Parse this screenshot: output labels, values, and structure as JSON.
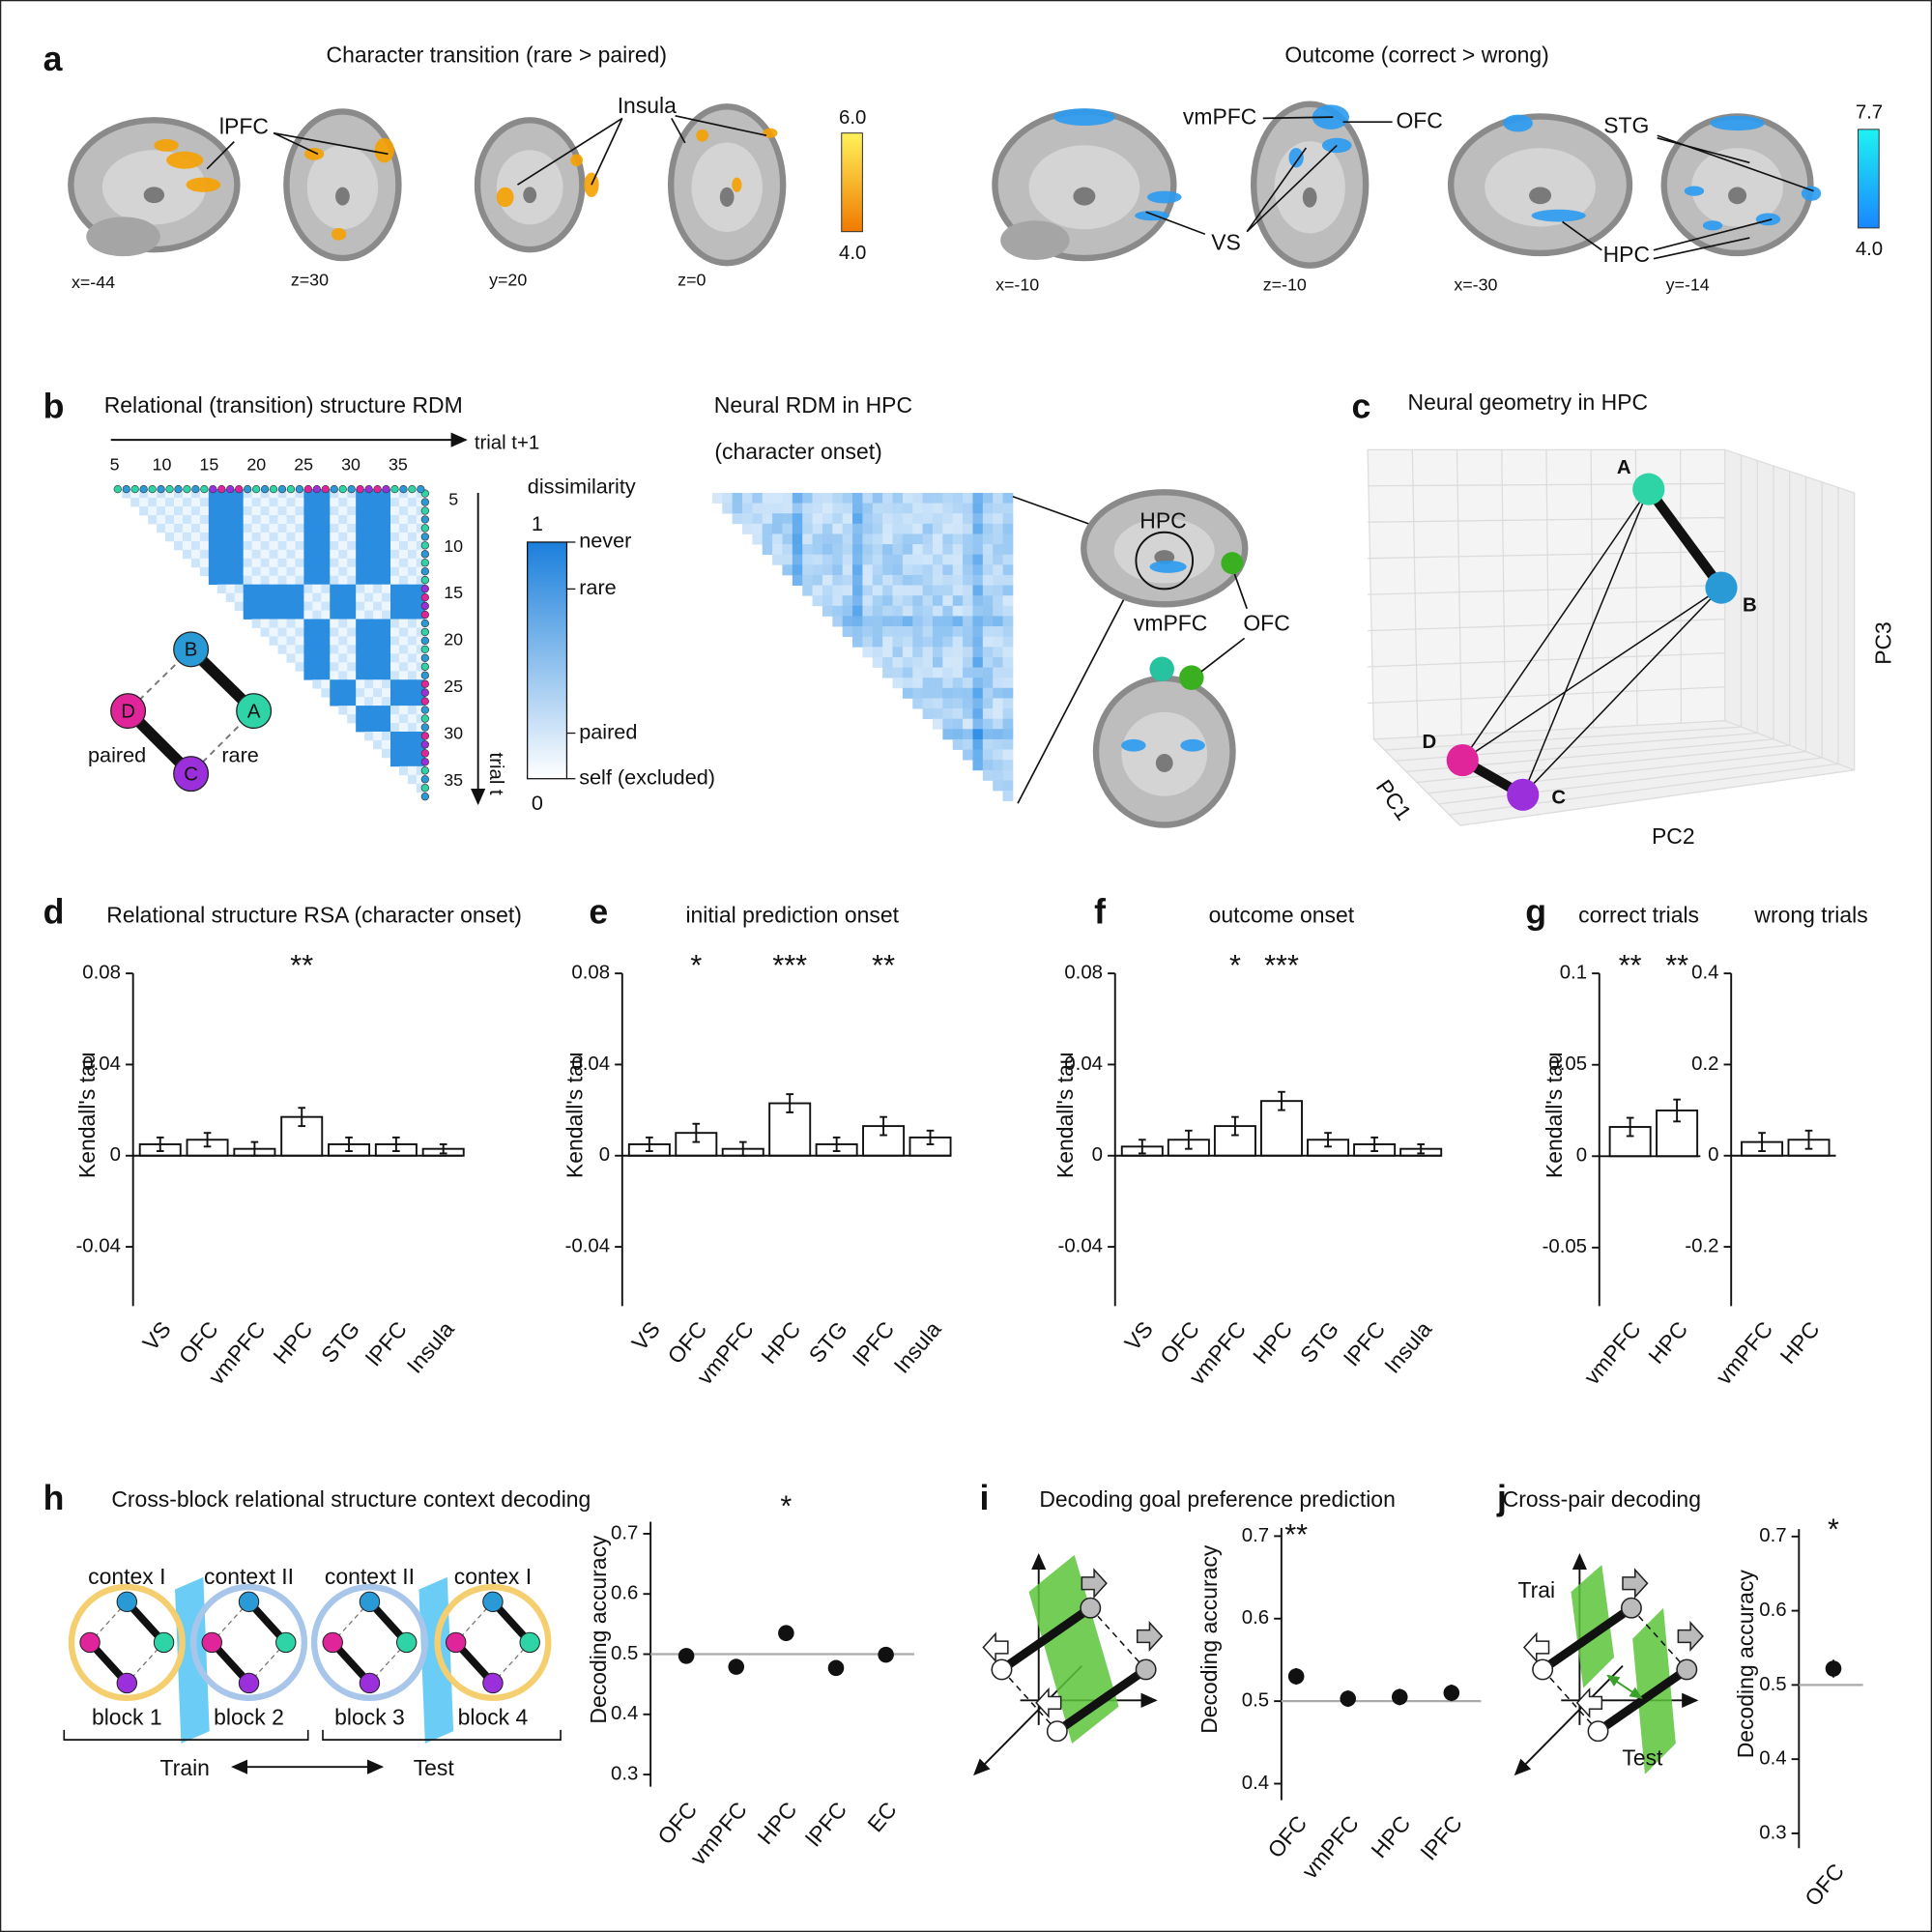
{
  "panel_labels": [
    "a",
    "b",
    "c",
    "d",
    "e",
    "f",
    "g",
    "h",
    "i",
    "j"
  ],
  "panel_a": {
    "titles": [
      "Character transition (rare > paired)",
      "Outcome (correct > wrong)"
    ],
    "slices": [
      "x=-44",
      "z=30",
      "y=20",
      "z=0",
      "x=-10",
      "z=-10",
      "x=-30",
      "y=-14"
    ],
    "regions": [
      "lPFC",
      "Insula",
      "vmPFC",
      "OFC",
      "VS",
      "STG",
      "HPC"
    ],
    "colorbars": [
      {
        "min": {
          "value": 4,
          "label": "4.0"
        },
        "max": {
          "value": 6,
          "label": "6.0"
        }
      },
      {
        "min": {
          "value": 4,
          "label": "4.0"
        },
        "max": 7.7
      }
    ]
  },
  "panel_b": {
    "title": "Relational (transition) structure RDM",
    "axis_top": "trial t+1",
    "axis_right": "trial t",
    "ticks": [
      5,
      10,
      15,
      20,
      25,
      30,
      35
    ],
    "colorbar_title": "dissimilarity",
    "colorbar_ticks": [
      0,
      1
    ],
    "levels": [
      "never",
      "rare",
      "paired",
      "self (excluded)"
    ],
    "nodes": [
      "A",
      "B",
      "C",
      "D"
    ],
    "edge_labels": [
      "paired",
      "rare"
    ],
    "neural_title": "Neural RDM in HPC",
    "neural_subtitle": "(character onset)",
    "brain_labels": [
      "HPC",
      "vmPFC",
      "OFC"
    ]
  },
  "panel_c": {
    "title": "Neural geometry in HPC",
    "nodes": [
      "A",
      "B",
      "C",
      "D"
    ],
    "axes": [
      "PC1",
      "PC2",
      "PC3"
    ]
  },
  "panel_h": {
    "contexts": [
      "contex I",
      "context II",
      "context II",
      "contex I"
    ],
    "blocks": [
      "block 1",
      "block 2",
      "block 3",
      "block 4"
    ],
    "train": "Train",
    "test": "Test"
  },
  "panel_j": {
    "train": "Trai",
    "test": "Test"
  },
  "chart_data": [
    {
      "type": "bar",
      "title": "Relational structure RSA (character onset)",
      "ylabel": "Kendall's tau",
      "categories": [
        "VS",
        "OFC",
        "vmPFC",
        "HPC",
        "STG",
        "lPFC",
        "Insula"
      ],
      "values": [
        0.005,
        0.007,
        0.003,
        0.017,
        0.005,
        0.005,
        0.003
      ],
      "errors": [
        0.003,
        0.003,
        0.003,
        0.004,
        0.003,
        0.003,
        0.002
      ],
      "significance": [
        null,
        null,
        null,
        "**",
        null,
        null,
        null
      ],
      "ylim": [
        -0.066,
        0.08
      ],
      "yticks": [
        -0.04,
        0,
        0.04,
        0.08
      ]
    },
    {
      "type": "bar",
      "title": "initial prediction onset",
      "ylabel": "Kendall's tau",
      "categories": [
        "VS",
        "OFC",
        "vmPFC",
        "HPC",
        "STG",
        "lPFC",
        "Insula"
      ],
      "values": [
        0.005,
        0.01,
        0.003,
        0.023,
        0.005,
        0.013,
        0.008
      ],
      "errors": [
        0.003,
        0.004,
        0.003,
        0.004,
        0.003,
        0.004,
        0.003
      ],
      "significance": [
        null,
        "*",
        null,
        "***",
        null,
        "**",
        null
      ],
      "ylim": [
        -0.066,
        0.08
      ],
      "yticks": [
        -0.04,
        0,
        0.04,
        0.08
      ]
    },
    {
      "type": "bar",
      "title": "outcome onset",
      "ylabel": "Kendall's tau",
      "categories": [
        "VS",
        "OFC",
        "vmPFC",
        "HPC",
        "STG",
        "lPFC",
        "Insula"
      ],
      "values": [
        0.004,
        0.007,
        0.013,
        0.024,
        0.007,
        0.005,
        0.003
      ],
      "errors": [
        0.003,
        0.004,
        0.004,
        0.004,
        0.003,
        0.003,
        0.002
      ],
      "significance": [
        null,
        null,
        "*",
        "***",
        null,
        null,
        null
      ],
      "ylim": [
        -0.066,
        0.08
      ],
      "yticks": [
        -0.04,
        0,
        0.04,
        0.08
      ]
    },
    {
      "type": "bar",
      "title": "correct trials",
      "ylabel": "Kendall's tau",
      "categories": [
        "vmPFC",
        "HPC"
      ],
      "values": [
        0.016,
        0.025
      ],
      "errors": [
        0.005,
        0.006
      ],
      "significance": [
        "**",
        "**"
      ],
      "ylim": [
        -0.082,
        0.1
      ],
      "yticks": [
        -0.05,
        0,
        0.05,
        0.1
      ]
    },
    {
      "type": "bar",
      "title": "wrong trials",
      "categories": [
        "vmPFC",
        "HPC"
      ],
      "values": [
        0.03,
        0.035
      ],
      "errors": [
        0.02,
        0.02
      ],
      "ylim": [
        -0.33,
        0.4
      ],
      "yticks": [
        -0.2,
        0,
        0.2,
        0.4
      ]
    },
    {
      "type": "point",
      "title": "Cross-block relational structure context decoding",
      "ylabel": "Decoding accuracy",
      "categories": [
        "OFC",
        "vmPFC",
        "HPC",
        "lPFC",
        "EC"
      ],
      "values": [
        0.497,
        0.479,
        0.535,
        0.477,
        0.499
      ],
      "errors": [
        0.012,
        0.012,
        0.011,
        0.011,
        0.012
      ],
      "significance": [
        null,
        null,
        "*",
        null,
        null
      ],
      "reference_line": 0.5,
      "ylim": [
        0.28,
        0.72
      ],
      "yticks": [
        0.3,
        0.4,
        0.5,
        0.6,
        0.7
      ]
    },
    {
      "type": "point",
      "title": "Decoding goal preference prediction",
      "ylabel": "Decoding accuracy",
      "categories": [
        "OFC",
        "vmPFC",
        "HPC",
        "lPFC"
      ],
      "values": [
        0.53,
        0.503,
        0.505,
        0.51
      ],
      "errors": [
        0.01,
        0.01,
        0.01,
        0.01
      ],
      "significance": [
        "**",
        null,
        null,
        null
      ],
      "reference_line": 0.5,
      "ylim": [
        0.38,
        0.71
      ],
      "yticks": [
        0.4,
        0.5,
        0.6,
        0.7
      ]
    },
    {
      "type": "point",
      "title": "Cross-pair decoding",
      "ylabel": "Decoding accuracy",
      "categories": [
        "OFC"
      ],
      "values": [
        0.522
      ],
      "errors": [
        0.012
      ],
      "significance": [
        "*"
      ],
      "reference_line": 0.5,
      "ylim": [
        0.28,
        0.71
      ],
      "yticks": [
        0.3,
        0.4,
        0.5,
        0.6,
        0.7
      ]
    }
  ]
}
